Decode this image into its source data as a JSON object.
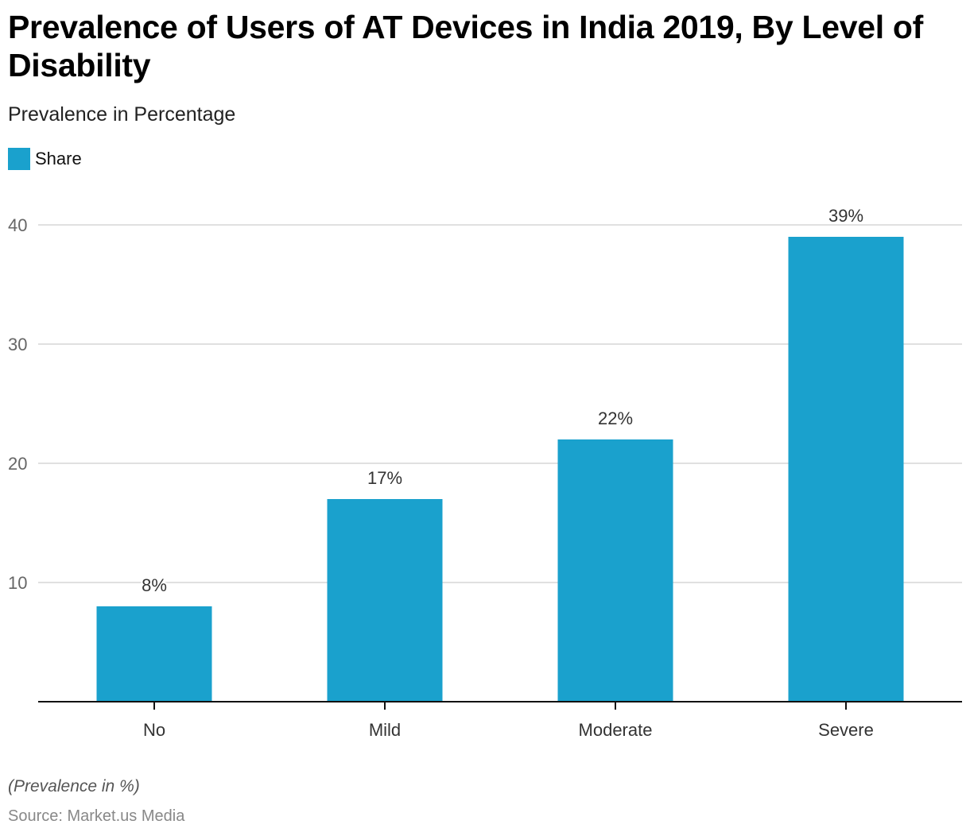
{
  "chart_data": {
    "type": "bar",
    "title": "Prevalence of Users of AT Devices in India 2019, By Level of Disability",
    "subtitle": "Prevalence in Percentage",
    "categories": [
      "No",
      "Mild",
      "Moderate",
      "Severe"
    ],
    "series": [
      {
        "name": "Share",
        "values": [
          8,
          17,
          22,
          39
        ],
        "color": "#1aa1cd"
      }
    ],
    "data_labels": [
      "8%",
      "17%",
      "22%",
      "39%"
    ],
    "xlabel": "",
    "ylabel": "",
    "ylim": [
      0,
      44
    ],
    "yticks": [
      10,
      20,
      30,
      40
    ],
    "grid": true,
    "legend_position": "top-left"
  },
  "footer": {
    "note": "(Prevalence in %)",
    "source": "Source: Market.us Media"
  }
}
